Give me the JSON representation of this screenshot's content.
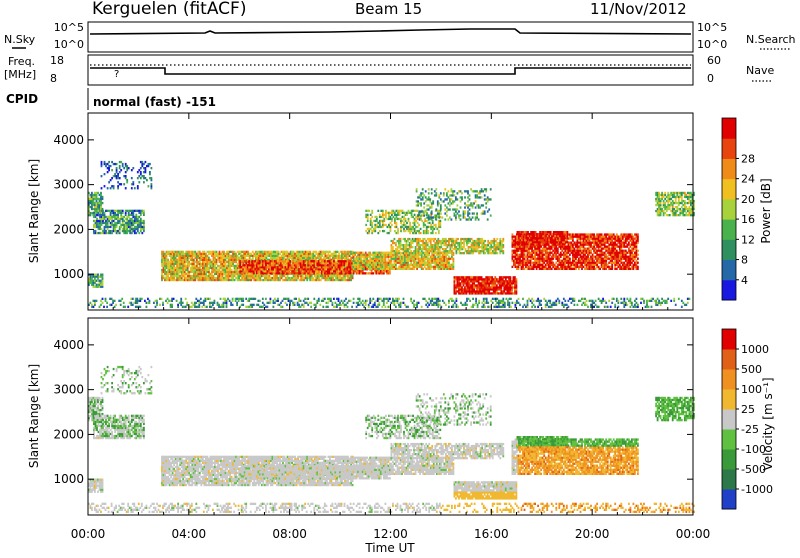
{
  "header": {
    "station": "Kerguelen (fitACF)",
    "beam": "Beam 15",
    "date": "11/Nov/2012"
  },
  "top_panels": {
    "nsky_label": "N.Sky",
    "nsky_ticks": [
      "10^5",
      "10^0"
    ],
    "nsearch_label": "N.Search",
    "freq_label_line1": "Freq.",
    "freq_label_line2": "[MHz]",
    "freq_ticks": [
      "18",
      "8"
    ],
    "nave_ticks": [
      "60",
      "0"
    ],
    "nave_label": "Nave",
    "cpid_label": "CPID",
    "cpid_value": "normal (fast) -151"
  },
  "chart_data": [
    {
      "type": "heatmap",
      "name": "power",
      "ylabel": "Slant Range [km]",
      "xlabel": "",
      "ylim": [
        200,
        4600
      ],
      "yticks": [
        1000,
        2000,
        3000,
        4000
      ],
      "colorbar": {
        "label": "Power [dB]",
        "ticks": [
          "4",
          "8",
          "12",
          "16",
          "20",
          "24",
          "28"
        ],
        "colors": [
          "#1818e0",
          "#2468a8",
          "#2f8f5e",
          "#49b24c",
          "#a8d23c",
          "#f0c020",
          "#f08a18",
          "#e84410",
          "#e00000"
        ]
      }
    },
    {
      "type": "heatmap",
      "name": "velocity",
      "ylabel": "Slant Range [km]",
      "xlabel": "Time UT",
      "ylim": [
        200,
        4600
      ],
      "yticks": [
        1000,
        2000,
        3000,
        4000
      ],
      "xticks": [
        "00:00",
        "04:00",
        "08:00",
        "12:00",
        "16:00",
        "20:00",
        "00:00"
      ],
      "colorbar": {
        "label": "Velocity [m s⁻¹]",
        "ticks": [
          "1000",
          "500",
          "100",
          "25",
          "-25",
          "-100",
          "-500",
          "-1000"
        ],
        "colors": [
          "#2040c8",
          "#2c7848",
          "#3a9a3a",
          "#60c040",
          "#c8c8c8",
          "#f0b830",
          "#f09020",
          "#e06018",
          "#e00000"
        ]
      }
    }
  ]
}
